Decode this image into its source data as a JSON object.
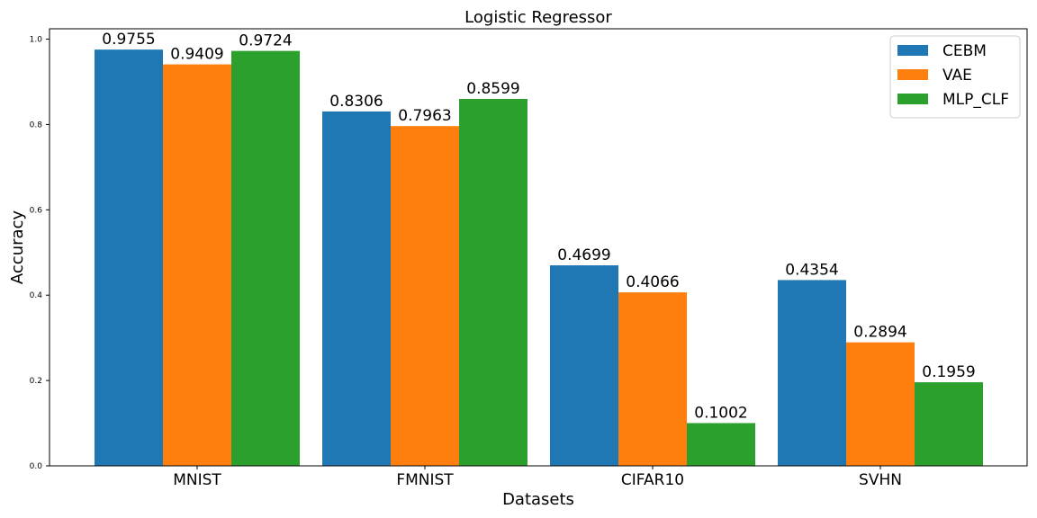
{
  "chart_data": {
    "type": "bar",
    "title": "Logistic Regressor",
    "xlabel": "Datasets",
    "ylabel": "Accuracy",
    "categories": [
      "MNIST",
      "FMNIST",
      "CIFAR10",
      "SVHN"
    ],
    "series": [
      {
        "name": "CEBM",
        "color": "#1f77b4",
        "values": [
          0.9755,
          0.8306,
          0.4699,
          0.4354
        ],
        "labels": [
          "0.9755",
          "0.8306",
          "0.4699",
          "0.4354"
        ]
      },
      {
        "name": "VAE",
        "color": "#ff7f0e",
        "values": [
          0.9409,
          0.7963,
          0.4066,
          0.2894
        ],
        "labels": [
          "0.9409",
          "0.7963",
          "0.4066",
          "0.2894"
        ]
      },
      {
        "name": "MLP_CLF",
        "color": "#2ca02c",
        "values": [
          0.9724,
          0.8599,
          0.1002,
          0.1959
        ],
        "labels": [
          "0.9724",
          "0.8599",
          "0.1002",
          "0.1959"
        ]
      }
    ],
    "yticks": [
      "0.0",
      "0.2",
      "0.4",
      "0.6",
      "0.8",
      "1.0"
    ],
    "ylim": [
      0,
      1.0243
    ],
    "legend_position": "top-right",
    "grid": false
  }
}
